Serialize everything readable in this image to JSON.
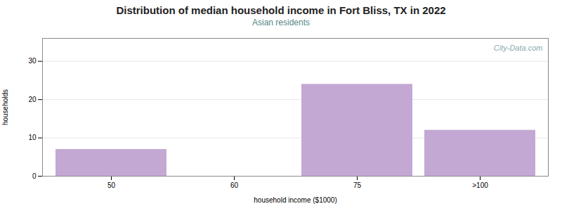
{
  "chart_data": {
    "type": "bar",
    "title": "Distribution of median household income in Fort Bliss, TX in 2022",
    "subtitle": "Asian residents",
    "xlabel": "household income ($1000)",
    "ylabel": "households",
    "categories": [
      "50",
      "60",
      "75",
      ">100"
    ],
    "values": [
      7,
      null,
      24,
      12
    ],
    "color": "#c4a8d4",
    "ylim": [
      0,
      36
    ],
    "yticks": [
      0,
      10,
      20,
      30
    ],
    "grid": true,
    "annotations": [
      {
        "text": "City-Data.com"
      }
    ]
  }
}
